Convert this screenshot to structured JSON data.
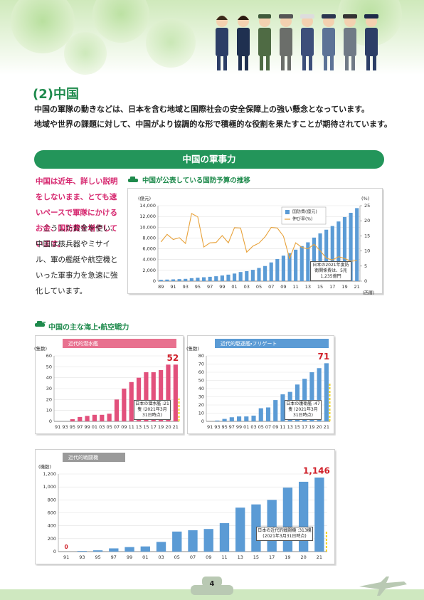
{
  "heading": "(2)中国",
  "intro": [
    "中国の軍隊の動きなどは、日本を含む地域と国際社会の安全保障上の強い懸念となっています。",
    "地域や世界の課題に対して、中国がより協調的な形で積極的な役割を果たすことが期待されています。"
  ],
  "banner": "中国の軍事力",
  "lead_text": "中国は近年、詳しい説明をしないまま、とても速いペースで軍隊にかけるお金、国防費を増やしています。",
  "body_text": "こうしたお金を使い、中国は核兵器やミサイル、軍の艦艇や航空機といった軍事力を急速に強化しています。",
  "naval_air_title": "中国の主な海上・航空戦力",
  "page_number": 4,
  "chart_data": [
    {
      "type": "bar",
      "title": "中国が公表している国防予算の推移",
      "y_label": "(億元)",
      "y2_label": "(%)",
      "x_label": "(西暦)",
      "categories": [
        "89",
        null,
        "91",
        null,
        "93",
        null,
        "95",
        null,
        "97",
        null,
        "99",
        null,
        "01",
        null,
        "03",
        null,
        "05",
        null,
        "07",
        null,
        "09",
        null,
        "11",
        null,
        "13",
        null,
        "15",
        null,
        "17",
        null,
        "19",
        null,
        "21"
      ],
      "series": [
        {
          "name": "国防費(億元)",
          "type": "bar",
          "color": "#5b9bd5",
          "values": [
            251,
            290,
            330,
            378,
            426,
            551,
            637,
            720,
            806,
            909,
            1047,
            1207,
            1410,
            1694,
            1853,
            2100,
            2447,
            2807,
            3472,
            4099,
            4729,
            5191,
            5836,
            6503,
            7202,
            8082,
            8869,
            9543,
            10226,
            11070,
            11899,
            12680,
            13553
          ]
        },
        {
          "name": "伸び率(%)",
          "type": "line",
          "color": "#e8a23a",
          "axis": "y2",
          "values": [
            13.0,
            15.5,
            13.8,
            14.4,
            12.5,
            22.4,
            21.3,
            11.3,
            12.7,
            12.8,
            15.1,
            12.7,
            17.7,
            17.6,
            9.6,
            11.6,
            12.6,
            14.7,
            17.8,
            17.6,
            14.9,
            7.5,
            12.7,
            11.2,
            10.7,
            12.2,
            10.1,
            7.6,
            7.0,
            8.1,
            7.5,
            6.6,
            6.8
          ]
        }
      ],
      "ylim": [
        0,
        14000
      ],
      "yticks": [
        0,
        {
          "value": 2000,
          "label": "2,000"
        },
        {
          "value": 4000,
          "label": "4,000"
        },
        {
          "value": 6000,
          "label": "6,000"
        },
        {
          "value": 8000,
          "label": "8,000"
        },
        {
          "value": 10000,
          "label": "10,000"
        },
        {
          "value": 12000,
          "label": "12,000"
        },
        {
          "value": 14000,
          "label": "14,000"
        }
      ],
      "y2lim": [
        0,
        25
      ],
      "y2ticks": [
        0,
        5,
        10,
        15,
        20,
        25
      ],
      "grid": true,
      "legend": "top-right",
      "annotation": "日本の2021年度防衛関係費は、5兆1,235億円"
    },
    {
      "type": "bar",
      "title": "近代的潜水艦",
      "y_label": "(隻数)",
      "color": "#e2507c",
      "tab_color": "#e8718f",
      "categories": [
        "91",
        "93",
        "95",
        "97",
        "99",
        "01",
        "03",
        "05",
        "07",
        "09",
        "11",
        "13",
        "15",
        "17",
        "19",
        "20",
        "21"
      ],
      "values": [
        0,
        0,
        2,
        4,
        5,
        6,
        6,
        7,
        20,
        30,
        36,
        40,
        45,
        45,
        47,
        52,
        52
      ],
      "value_labels": [
        null,
        null,
        null,
        null,
        null,
        null,
        null,
        null,
        null,
        null,
        null,
        null,
        null,
        null,
        null,
        null,
        "52"
      ],
      "ylim": [
        0,
        60
      ],
      "yticks": [
        0,
        10,
        20,
        30,
        40,
        50,
        60
      ],
      "grid": true,
      "reference": 21,
      "annotation": "日本の潜水艦 :21隻 (2021年3月31日時点)"
    },
    {
      "type": "bar",
      "title": "近代的駆逐艦・フリゲート",
      "y_label": "(隻数)",
      "color": "#5b9bd5",
      "tab_color": "#5b9bd5",
      "categories": [
        "91",
        "93",
        "95",
        "97",
        "99",
        "01",
        "03",
        "05",
        "07",
        "09",
        "11",
        "13",
        "15",
        "17",
        "19",
        "20",
        "21"
      ],
      "values": [
        0,
        1,
        3,
        5,
        6,
        6,
        7,
        16,
        17,
        26,
        33,
        36,
        45,
        52,
        60,
        65,
        71
      ],
      "value_labels": [
        null,
        null,
        null,
        null,
        null,
        null,
        null,
        null,
        null,
        null,
        null,
        null,
        null,
        null,
        null,
        null,
        "71"
      ],
      "ylim": [
        0,
        80
      ],
      "yticks": [
        0,
        10,
        20,
        30,
        40,
        50,
        60,
        70,
        80
      ],
      "grid": true,
      "reference": 47,
      "annotation": "日本の護衛艦 :47隻 (2021年3月31日時点)"
    },
    {
      "type": "bar",
      "title": "近代的戦闘機",
      "y_label": "(機数)",
      "color": "#5b9bd5",
      "tab_color": "#9a9a9a",
      "categories": [
        "91",
        "93",
        "95",
        "97",
        "99",
        "01",
        "03",
        "05",
        "07",
        "09",
        "11",
        "13",
        "15",
        "17",
        "19",
        "20",
        "21"
      ],
      "values": [
        0,
        10,
        20,
        50,
        70,
        80,
        150,
        310,
        330,
        350,
        440,
        680,
        730,
        800,
        990,
        1080,
        1146
      ],
      "value_labels": [
        "0",
        null,
        null,
        null,
        null,
        null,
        null,
        null,
        null,
        null,
        null,
        null,
        null,
        null,
        null,
        null,
        "1,146"
      ],
      "ylim": [
        0,
        1200
      ],
      "yticks": [
        0,
        200,
        400,
        600,
        800,
        {
          "value": 1000,
          "label": "1,000"
        },
        {
          "value": 1200,
          "label": "1,200"
        }
      ],
      "grid": true,
      "reference": 313,
      "annotation": "日本の近代的戦闘機 :313機 (2021年3月31日時点)"
    }
  ]
}
